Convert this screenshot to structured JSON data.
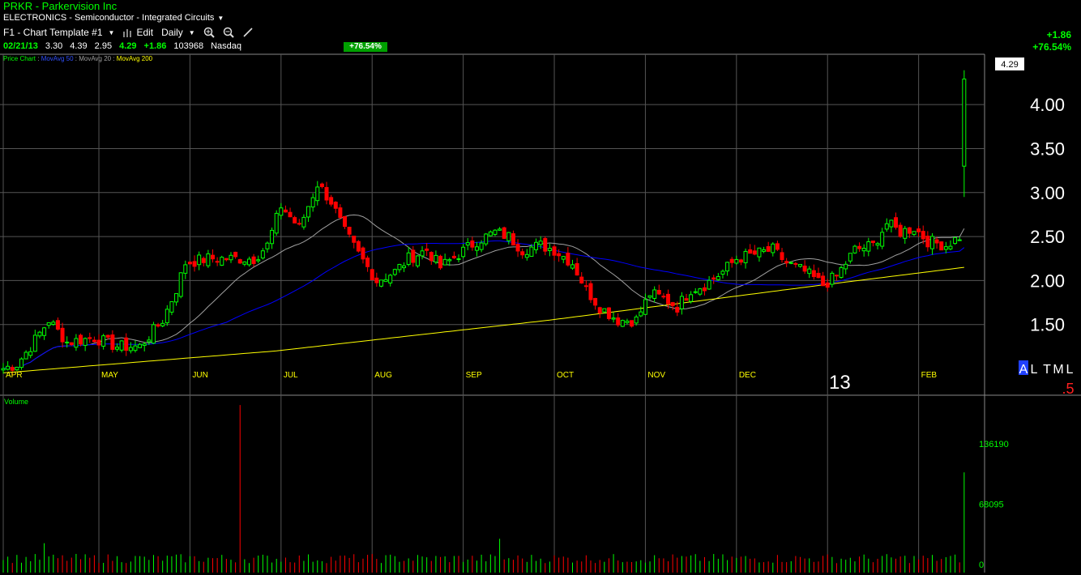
{
  "header": {
    "title": "PRKR - Parkervision Inc",
    "sector": "ELECTRONICS - Semiconductor - Integrated Circuits",
    "template": "F1 - Chart Template #1",
    "edit_label": "Edit",
    "period_label": "Daily"
  },
  "quote": {
    "date": "02/21/13",
    "open": "3.30",
    "high": "4.39",
    "low": "2.95",
    "close": "4.29",
    "change": "+1.86",
    "volume": "103968",
    "exchange": "Nasdaq",
    "pct_change": "+76.54%"
  },
  "right_panel": {
    "change": "+1.86",
    "pct_change": "+76.54%",
    "last_price_label": "4.29"
  },
  "legend": {
    "price": "Price Chart",
    "ma50": "MovAvg 50",
    "ma20": "MovAvg 20",
    "ma200": "MovAvg 200"
  },
  "overlay": {
    "year_label": "13",
    "corner_letters": [
      "A",
      "L",
      "T",
      "M",
      "L"
    ],
    "corner_value": ".5"
  },
  "colors": {
    "up": "#00ff00",
    "down": "#ff0000",
    "ma20": "#a0a0a0",
    "ma50": "#0000ff",
    "ma200": "#ffff00",
    "grid": "#555555"
  },
  "chart_data": [
    {
      "type": "candlestick",
      "title": "",
      "series_labels": [
        "Price Chart",
        "MovAvg 50",
        "MovAvg 20",
        "MovAvg 200"
      ],
      "x_tick_labels": [
        "APR",
        "MAY",
        "JUN",
        "JUL",
        "AUG",
        "SEP",
        "OCT",
        "NOV",
        "DEC",
        "FEB"
      ],
      "y_tick_labels": [
        "1.50",
        "2.00",
        "2.50",
        "3.00",
        "3.50",
        "4.00"
      ],
      "ylim": [
        1.0,
        4.6
      ],
      "grid": true,
      "month_starts": [
        0,
        21,
        41,
        61,
        81,
        101,
        121,
        141,
        161,
        181,
        201
      ],
      "anchors": [
        [
          0,
          1.0
        ],
        [
          3,
          1.05
        ],
        [
          6,
          1.25
        ],
        [
          10,
          1.55
        ],
        [
          14,
          1.3
        ],
        [
          20,
          1.35
        ],
        [
          25,
          1.25
        ],
        [
          30,
          1.25
        ],
        [
          35,
          1.55
        ],
        [
          38,
          1.9
        ],
        [
          40,
          2.2
        ],
        [
          45,
          2.25
        ],
        [
          50,
          2.25
        ],
        [
          55,
          2.25
        ],
        [
          58,
          2.4
        ],
        [
          61,
          2.85
        ],
        [
          65,
          2.6
        ],
        [
          69,
          3.1
        ],
        [
          72,
          2.9
        ],
        [
          75,
          2.55
        ],
        [
          78,
          2.3
        ],
        [
          82,
          2.0
        ],
        [
          86,
          2.1
        ],
        [
          89,
          2.25
        ],
        [
          93,
          2.35
        ],
        [
          96,
          2.15
        ],
        [
          100,
          2.3
        ],
        [
          104,
          2.45
        ],
        [
          108,
          2.55
        ],
        [
          111,
          2.5
        ],
        [
          114,
          2.35
        ],
        [
          118,
          2.4
        ],
        [
          121,
          2.35
        ],
        [
          125,
          2.2
        ],
        [
          128,
          1.9
        ],
        [
          131,
          1.7
        ],
        [
          135,
          1.55
        ],
        [
          139,
          1.55
        ],
        [
          142,
          1.85
        ],
        [
          145,
          1.8
        ],
        [
          148,
          1.7
        ],
        [
          151,
          1.9
        ],
        [
          154,
          1.95
        ],
        [
          158,
          2.1
        ],
        [
          161,
          2.25
        ],
        [
          165,
          2.3
        ],
        [
          169,
          2.35
        ],
        [
          172,
          2.2
        ],
        [
          176,
          2.1
        ],
        [
          180,
          1.95
        ],
        [
          183,
          2.05
        ],
        [
          187,
          2.35
        ],
        [
          191,
          2.4
        ],
        [
          194,
          2.65
        ],
        [
          197,
          2.55
        ],
        [
          200,
          2.6
        ],
        [
          203,
          2.45
        ],
        [
          207,
          2.4
        ],
        [
          210,
          2.5
        ],
        [
          211,
          4.29
        ]
      ],
      "ma200_anchors": [
        [
          0,
          0.95
        ],
        [
          60,
          1.2
        ],
        [
          120,
          1.55
        ],
        [
          180,
          1.95
        ],
        [
          211,
          2.15
        ]
      ],
      "last_bar": {
        "open": 3.3,
        "high": 4.39,
        "low": 2.95,
        "close": 4.29
      }
    },
    {
      "type": "bar",
      "title": "Volume",
      "y_tick_labels": [
        "0",
        "68095",
        "136190"
      ],
      "ylim": [
        0,
        136190
      ],
      "spikes": [
        {
          "index": 52,
          "value": 180000
        },
        {
          "index": 211,
          "value": 103968
        },
        {
          "index": 109,
          "value": 29000
        },
        {
          "index": 9,
          "value": 24000
        }
      ],
      "base_volume_range": [
        1500,
        12000
      ]
    }
  ]
}
